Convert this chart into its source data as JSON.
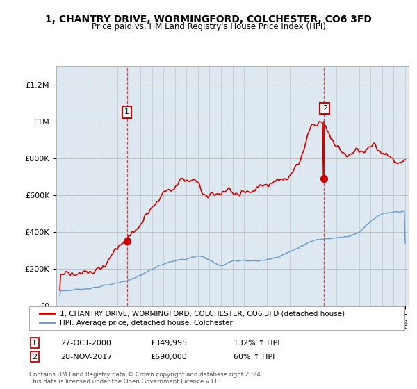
{
  "title": "1, CHANTRY DRIVE, WORMINGFORD, COLCHESTER, CO6 3FD",
  "subtitle": "Price paid vs. HM Land Registry's House Price Index (HPI)",
  "legend_line1": "1, CHANTRY DRIVE, WORMINGFORD, COLCHESTER, CO6 3FD (detached house)",
  "legend_line2": "HPI: Average price, detached house, Colchester",
  "footer": "Contains HM Land Registry data © Crown copyright and database right 2024.\nThis data is licensed under the Open Government Licence v3.0.",
  "sale1_date": "27-OCT-2000",
  "sale1_price": "£349,995",
  "sale1_hpi": "132% ↑ HPI",
  "sale2_date": "28-NOV-2017",
  "sale2_price": "£690,000",
  "sale2_hpi": "60% ↑ HPI",
  "hpi_color": "#6699cc",
  "price_color": "#cc0000",
  "vline_color": "#cc0000",
  "bg_fill_color": "#dde8f0",
  "background_color": "#ffffff",
  "ylim": [
    0,
    1300000
  ],
  "yticks": [
    0,
    200000,
    400000,
    600000,
    800000,
    1000000,
    1200000
  ],
  "ytick_labels": [
    "£0",
    "£200K",
    "£400K",
    "£600K",
    "£800K",
    "£1M",
    "£1.2M"
  ]
}
